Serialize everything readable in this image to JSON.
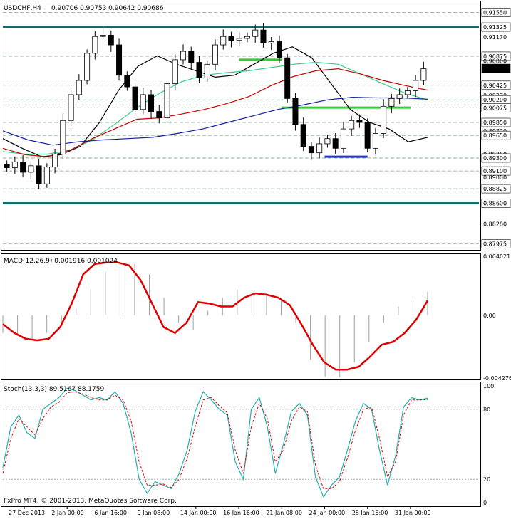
{
  "header": {
    "symbol_tf": "USDCHF,H4",
    "ohlc": "0.90706 0.90753 0.90642 0.90686"
  },
  "copyright": "FxPro MT4, © 2001-2013, MetaQuotes Software Corp.",
  "colors": {
    "candle": "#000000",
    "macd_line": "#dd0000",
    "macd_hist": "#a0a0a0",
    "stoch_main": "#20b0b0",
    "stoch_signal": "#dd0000",
    "ma_black": "#000000",
    "ma_green": "#33cc88",
    "ma_red": "#cc0000",
    "ma_blue": "#1020a0",
    "hline_teal": "#0e6e6e",
    "level_green": "#33cc33",
    "level_blue": "#2233cc",
    "grid": "#7ca87c"
  },
  "chart_data": [
    {
      "type": "candlestick",
      "name": "price",
      "ylim": [
        0.8789,
        0.917
      ],
      "y_ticks": [
        "0.91550",
        "0.91325",
        "0.91170",
        "0.90875",
        "0.90800",
        "0.90686",
        "0.90425",
        "0.90270",
        "0.90200",
        "0.90075",
        "0.89850",
        "0.89720",
        "0.89650",
        "0.89360",
        "0.89300",
        "0.89100",
        "0.89000",
        "0.88825",
        "0.88600",
        "0.88280",
        "0.87975"
      ],
      "boxed_labels": [
        "0.91550",
        "0.91325",
        "0.90875",
        "0.90686",
        "0.90425",
        "0.90200",
        "0.90075",
        "0.89850",
        "0.89650",
        "0.89300",
        "0.89100",
        "0.88825",
        "0.88600",
        "0.87975"
      ],
      "current_price": 0.90686,
      "horizontal_lines": {
        "teal": [
          0.91325,
          0.886
        ],
        "green_dashed": [
          0.9155,
          0.90875,
          0.90425,
          0.902,
          0.90075,
          0.8985,
          0.8965,
          0.893,
          0.891,
          0.88825,
          0.87975
        ],
        "green_segments": [
          {
            "from": "16 Jan 16:00",
            "to": "21 Jan 08:00",
            "price": 0.9082
          },
          {
            "from": "21 Jan 08:00",
            "to": "31 Jan 00:00",
            "price": 0.9008
          }
        ],
        "blue_segments": [
          {
            "from": "24 Jan 00:00",
            "to": "28 Jan 16:00",
            "price": 0.8932
          }
        ]
      },
      "x_tick_labels": [
        "27 Dec 2013",
        "2 Jan 00:00",
        "6 Jan 16:00",
        "9 Jan 08:00",
        "14 Jan 00:00",
        "16 Jan 16:00",
        "21 Jan 08:00",
        "24 Jan 00:00",
        "28 Jan 16:00",
        "31 Jan 00:00"
      ],
      "close_path": [
        0.8915,
        0.8924,
        0.8908,
        0.8918,
        0.889,
        0.8916,
        0.8936,
        0.8988,
        0.9028,
        0.905,
        0.9092,
        0.9118,
        0.912,
        0.9105,
        0.9058,
        0.904,
        0.9005,
        0.9028,
        0.9002,
        0.8992,
        0.9045,
        0.9082,
        0.9095,
        0.9078,
        0.9054,
        0.9075,
        0.9105,
        0.9118,
        0.9112,
        0.9115,
        0.9118,
        0.9128,
        0.9108,
        0.911,
        0.9085,
        0.9022,
        0.8982,
        0.8948,
        0.8938,
        0.8952,
        0.896,
        0.8945,
        0.8975,
        0.8988,
        0.8985,
        0.8945,
        0.8968,
        0.901,
        0.9022,
        0.9028,
        0.9034,
        0.905,
        0.9068
      ],
      "ma_curves": [
        {
          "color": "#000000",
          "points": [
            0.896,
            0.8945,
            0.8932,
            0.8935,
            0.8948,
            0.8985,
            0.9035,
            0.9072,
            0.9088,
            0.9075,
            0.9065,
            0.9055,
            0.9058,
            0.9075,
            0.9092,
            0.9102,
            0.9085,
            0.9045,
            0.9005,
            0.8985,
            0.8975,
            0.8955,
            0.8962
          ]
        },
        {
          "color": "#33cc88",
          "points": [
            0.894,
            0.8936,
            0.8936,
            0.8942,
            0.8958,
            0.8982,
            0.9008,
            0.903,
            0.9048,
            0.9058,
            0.9062,
            0.9065,
            0.907,
            0.9075,
            0.9078,
            0.9075,
            0.906,
            0.9045,
            0.903,
            0.902
          ]
        },
        {
          "color": "#cc0000",
          "points": [
            0.8945,
            0.8935,
            0.8932,
            0.8942,
            0.896,
            0.8975,
            0.899,
            0.8992,
            0.8998,
            0.9005,
            0.9014,
            0.9025,
            0.9042,
            0.9056,
            0.9065,
            0.9068,
            0.906,
            0.905,
            0.9042,
            0.9035
          ]
        },
        {
          "color": "#1020a0",
          "points": [
            0.8972,
            0.8958,
            0.895,
            0.8955,
            0.8958,
            0.896,
            0.8962,
            0.8968,
            0.8975,
            0.8985,
            0.8995,
            0.9005,
            0.9012,
            0.902,
            0.9024,
            0.9023,
            0.9023,
            0.9021
          ]
        }
      ]
    },
    {
      "type": "line",
      "name": "macd",
      "title": "MACD(12,26,9) 0.001916 0.001024",
      "ylim": [
        -0.00427,
        0.00402
      ],
      "y_ticks": [
        "0.004021",
        "0.00",
        "-0.004276"
      ],
      "signal": [
        -0.0006,
        -0.0012,
        -0.0016,
        -0.0017,
        -0.0016,
        -0.0008,
        0.0008,
        0.0028,
        0.0035,
        0.0036,
        0.0036,
        0.0034,
        0.0024,
        0.0008,
        -0.0008,
        -0.0012,
        -0.0005,
        0.0009,
        0.0008,
        0.0006,
        0.0006,
        0.0012,
        0.0015,
        0.0014,
        0.0012,
        0.0007,
        -0.0006,
        -0.002,
        -0.0032,
        -0.0037,
        -0.0037,
        -0.0035,
        -0.0028,
        -0.002,
        -0.0018,
        -0.0012,
        -0.0003,
        0.001
      ],
      "histogram": [
        -0.0012,
        -0.0014,
        -0.0016,
        -0.0012,
        -0.0006,
        0.0005,
        0.0018,
        0.003,
        0.0036,
        0.0035,
        0.0028,
        0.0012,
        -0.0005,
        -0.001,
        0.0003,
        0.0012,
        0.0018,
        0.0016,
        0.0015,
        0.001,
        -0.0005,
        -0.003,
        -0.0042,
        -0.0042,
        -0.0032,
        -0.0018,
        -0.0005,
        0.0006,
        0.0012,
        0.0016
      ]
    },
    {
      "type": "line",
      "name": "stochastic",
      "title": "Stoch(13,3,3) 89.5167 88.1759",
      "ylim": [
        0,
        100
      ],
      "y_ticks": [
        "100",
        "80",
        "20",
        "0"
      ],
      "main": [
        30,
        65,
        75,
        60,
        55,
        80,
        85,
        90,
        98,
        96,
        92,
        88,
        90,
        88,
        95,
        85,
        60,
        20,
        8,
        18,
        15,
        12,
        25,
        45,
        78,
        95,
        88,
        80,
        75,
        35,
        20,
        80,
        90,
        65,
        25,
        50,
        78,
        85,
        75,
        22,
        5,
        15,
        22,
        45,
        70,
        85,
        80,
        45,
        15,
        40,
        82,
        90,
        88,
        89.5
      ],
      "signal": [
        25,
        55,
        72,
        65,
        58,
        72,
        82,
        86,
        94,
        95,
        93,
        90,
        88,
        88,
        92,
        88,
        70,
        35,
        15,
        15,
        16,
        13,
        20,
        38,
        65,
        88,
        90,
        83,
        77,
        45,
        25,
        65,
        85,
        72,
        35,
        45,
        70,
        82,
        78,
        32,
        12,
        12,
        18,
        38,
        62,
        80,
        82,
        55,
        22,
        35,
        75,
        88,
        88,
        88.2
      ]
    }
  ]
}
